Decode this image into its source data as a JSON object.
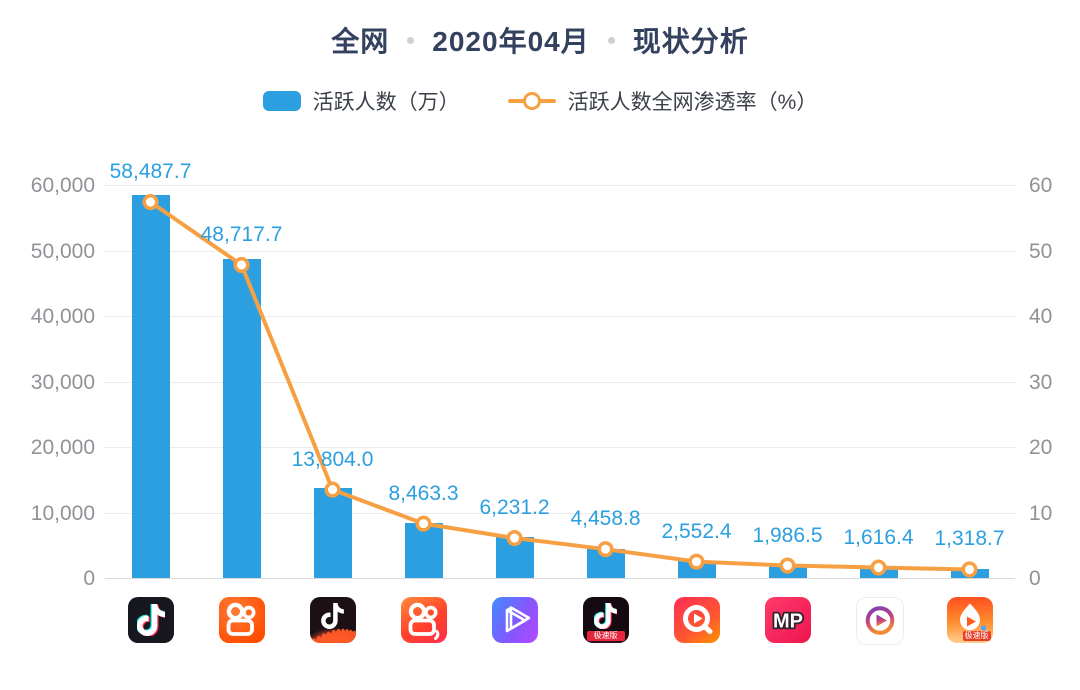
{
  "title": {
    "part1": "全网",
    "part2": "2020年04月",
    "part3": "现状分析"
  },
  "legend": {
    "bar_label": "活跃人数（万）",
    "line_label": "活跃人数全网渗透率（%）"
  },
  "colors": {
    "bar": "#2B9FE0",
    "line": "#F7A043",
    "data_label": "#2B9FE0",
    "title_text": "#33405E",
    "legend_text": "#3B4049",
    "axis_text": "#8F9296",
    "gridline": "#ECECEC",
    "baseline": "#D9D9D9"
  },
  "chart_data": {
    "type": "bar",
    "combo": "bar+line dual axis",
    "title": "全网 · 2020年04月 · 现状分析",
    "categories": [
      "douyin",
      "kuaishou",
      "douyin-huoshan",
      "kuaishou-jisu",
      "weishi",
      "douyin-jisu",
      "quanmin-video",
      "meipai",
      "gradient-play-app",
      "huoshan-jisu"
    ],
    "x_labels_are_app_icons": true,
    "series": [
      {
        "name": "活跃人数（万）",
        "type": "bar",
        "y_axis": "left",
        "values": [
          58487.7,
          48717.7,
          13804.0,
          8463.3,
          6231.2,
          4458.8,
          2552.4,
          1986.5,
          1616.4,
          1318.7
        ]
      },
      {
        "name": "活跃人数全网渗透率（%）",
        "type": "line",
        "y_axis": "right",
        "values": [
          57.4,
          47.8,
          13.5,
          8.3,
          6.1,
          4.4,
          2.5,
          1.9,
          1.6,
          1.3
        ],
        "note": "estimated from plot position; line points carry no printed labels"
      }
    ],
    "bar_value_labels": [
      "58,487.7",
      "48,717.7",
      "13,804.0",
      "8,463.3",
      "6,231.2",
      "4,458.8",
      "2,552.4",
      "1,986.5",
      "1,616.4",
      "1,318.7"
    ],
    "y_axis_left": {
      "min": 0,
      "max": 60000,
      "ticks": [
        0,
        10000,
        20000,
        30000,
        40000,
        50000,
        60000
      ]
    },
    "y_axis_right": {
      "min": 0,
      "max": 60,
      "ticks": [
        0,
        10,
        20,
        30,
        40,
        50,
        60
      ]
    },
    "grid": true,
    "legend_position": "top"
  },
  "icons": [
    {
      "id": "douyin"
    },
    {
      "id": "kuaishou"
    },
    {
      "id": "douyin-huoshan"
    },
    {
      "id": "kuaishou-jisu"
    },
    {
      "id": "weishi"
    },
    {
      "id": "douyin-jisu",
      "badge": "极速版"
    },
    {
      "id": "quanmin-video"
    },
    {
      "id": "meipai"
    },
    {
      "id": "gradient-play-app"
    },
    {
      "id": "huoshan-jisu",
      "badge": "极速版"
    }
  ]
}
